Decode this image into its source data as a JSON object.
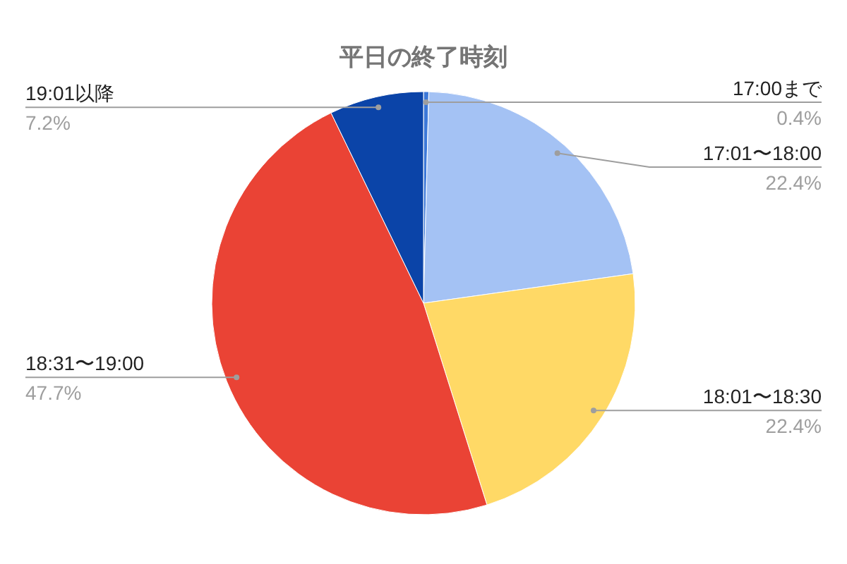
{
  "chart_data": {
    "type": "pie",
    "title": "平日の終了時刻",
    "categories": [
      "17:00まで",
      "17:01〜18:00",
      "18:01〜18:30",
      "18:31〜19:00",
      "19:01以降"
    ],
    "values": [
      0.4,
      22.4,
      22.4,
      47.7,
      7.2
    ],
    "colors": [
      "#3c78d8",
      "#a4c2f4",
      "#ffd966",
      "#ea4335",
      "#0b44a8"
    ],
    "value_labels": [
      "0.4%",
      "22.4%",
      "22.4%",
      "47.7%",
      "7.2%"
    ]
  }
}
